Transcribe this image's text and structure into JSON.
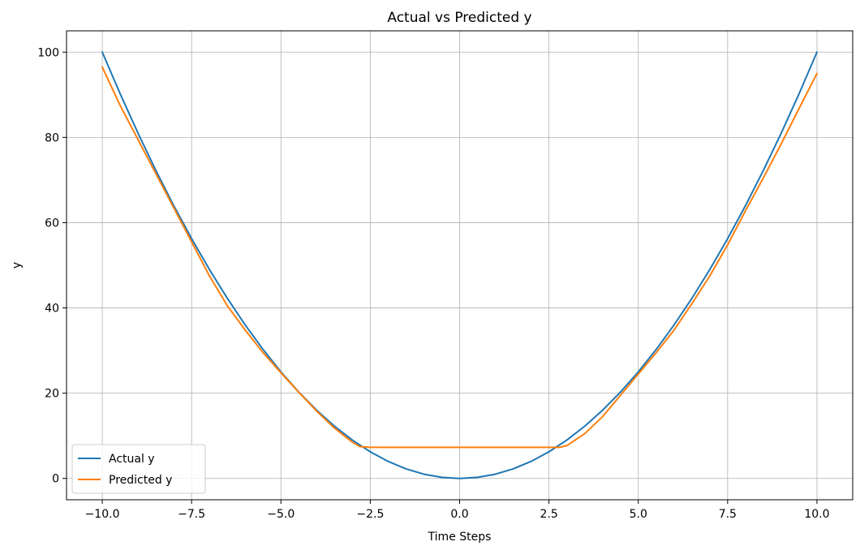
{
  "chart_data": {
    "type": "line",
    "title": "Actual vs Predicted y",
    "xlabel": "Time Steps",
    "ylabel": "y",
    "xlim": [
      -11,
      11
    ],
    "ylim": [
      -5,
      105
    ],
    "xticks": [
      -10.0,
      -7.5,
      -5.0,
      -2.5,
      0.0,
      2.5,
      5.0,
      7.5,
      10.0
    ],
    "xtick_labels": [
      "−10.0",
      "−7.5",
      "−5.0",
      "−2.5",
      "0.0",
      "2.5",
      "5.0",
      "7.5",
      "10.0"
    ],
    "yticks": [
      0,
      20,
      40,
      60,
      80,
      100
    ],
    "ytick_labels": [
      "0",
      "20",
      "40",
      "60",
      "80",
      "100"
    ],
    "grid": true,
    "legend_position": "lower-left",
    "series": [
      {
        "name": "Actual y",
        "color": "#1f77b4",
        "x": [
          -10,
          -9.5,
          -9,
          -8.5,
          -8,
          -7.5,
          -7,
          -6.5,
          -6,
          -5.5,
          -5,
          -4.5,
          -4,
          -3.5,
          -3,
          -2.5,
          -2,
          -1.5,
          -1,
          -0.5,
          0,
          0.5,
          1,
          1.5,
          2,
          2.5,
          3,
          3.5,
          4,
          4.5,
          5,
          5.5,
          6,
          6.5,
          7,
          7.5,
          8,
          8.5,
          9,
          9.5,
          10
        ],
        "y": [
          100,
          90.25,
          81,
          72.25,
          64,
          56.25,
          49,
          42.25,
          36,
          30.25,
          25,
          20.25,
          16,
          12.25,
          9,
          6.25,
          4,
          2.25,
          1,
          0.25,
          0,
          0.25,
          1,
          2.25,
          4,
          6.25,
          9,
          12.25,
          16,
          20.25,
          25,
          30.25,
          36,
          42.25,
          49,
          56.25,
          64,
          72.25,
          81,
          90.25,
          100
        ]
      },
      {
        "name": "Predicted y",
        "color": "#ff7f0e",
        "x": [
          -10,
          -9.5,
          -9,
          -8.5,
          -8,
          -7.5,
          -7,
          -6.5,
          -6,
          -5.5,
          -5,
          -4.5,
          -4,
          -3.5,
          -3,
          -2.8,
          -2.5,
          -2,
          -1,
          0,
          1,
          2,
          2.5,
          2.8,
          3,
          3.5,
          4,
          4.5,
          5,
          5.5,
          6,
          6.5,
          7,
          7.5,
          8,
          8.5,
          9,
          9.5,
          10
        ],
        "y": [
          96.5,
          87.5,
          79.5,
          71.5,
          63.5,
          55.5,
          47.5,
          40.5,
          34.8,
          29.5,
          24.8,
          20.2,
          15.8,
          11.8,
          8.5,
          7.5,
          7.3,
          7.3,
          7.3,
          7.3,
          7.3,
          7.3,
          7.3,
          7.3,
          7.7,
          10.5,
          14.5,
          19.5,
          24.5,
          29.5,
          34.8,
          41.0,
          47.5,
          54.8,
          62.8,
          70.5,
          78.5,
          86.8,
          95.0
        ]
      }
    ]
  }
}
